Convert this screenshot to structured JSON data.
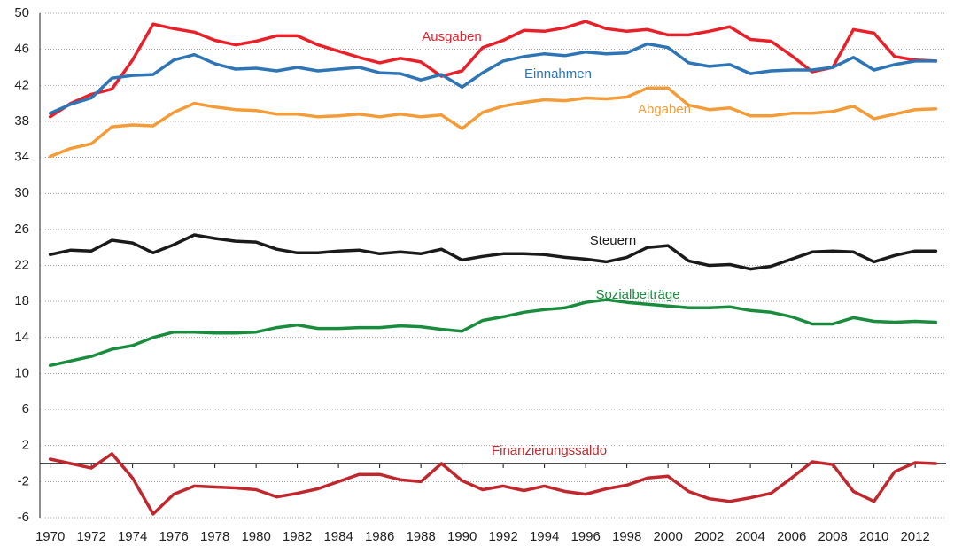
{
  "chart_data": {
    "type": "line",
    "x": [
      1970,
      1971,
      1972,
      1973,
      1974,
      1975,
      1976,
      1977,
      1978,
      1979,
      1980,
      1981,
      1982,
      1983,
      1984,
      1985,
      1986,
      1987,
      1988,
      1989,
      1990,
      1991,
      1992,
      1993,
      1994,
      1995,
      1996,
      1997,
      1998,
      1999,
      2000,
      2001,
      2002,
      2003,
      2004,
      2005,
      2006,
      2007,
      2008,
      2009,
      2010,
      2011,
      2012,
      2013
    ],
    "xlim": [
      1969.5,
      2013.5
    ],
    "xticks": [
      1970,
      1972,
      1974,
      1976,
      1978,
      1980,
      1982,
      1984,
      1986,
      1988,
      1990,
      1992,
      1994,
      1996,
      1998,
      2000,
      2002,
      2004,
      2006,
      2008,
      2010,
      2012
    ],
    "ylim": [
      -6,
      50
    ],
    "yticks": [
      50,
      46,
      42,
      38,
      34,
      30,
      26,
      22,
      18,
      14,
      10,
      6,
      2,
      -2,
      -6
    ],
    "grid": true,
    "series": [
      {
        "name": "Ausgaben",
        "color": "#e8202a",
        "values": [
          38.5,
          40.0,
          41.0,
          41.6,
          44.8,
          48.8,
          48.3,
          47.9,
          47.0,
          46.5,
          46.9,
          47.5,
          47.5,
          46.5,
          45.8,
          45.1,
          44.5,
          45.0,
          44.6,
          43.0,
          43.6,
          46.2,
          47.0,
          48.1,
          48.0,
          48.4,
          49.1,
          48.3,
          48.0,
          48.2,
          47.6,
          47.6,
          48.0,
          48.5,
          47.1,
          46.9,
          45.3,
          43.5,
          44.0,
          48.2,
          47.8,
          45.2,
          44.8,
          44.7
        ]
      },
      {
        "name": "Einnahmen",
        "color": "#2e75b6",
        "values": [
          38.9,
          39.9,
          40.6,
          42.8,
          43.1,
          43.2,
          44.8,
          45.4,
          44.4,
          43.8,
          43.9,
          43.6,
          44.0,
          43.6,
          43.8,
          44.0,
          43.4,
          43.3,
          42.6,
          43.2,
          41.8,
          43.4,
          44.7,
          45.2,
          45.5,
          45.3,
          45.7,
          45.5,
          45.6,
          46.6,
          46.2,
          44.5,
          44.1,
          44.3,
          43.3,
          43.6,
          43.7,
          43.7,
          44.0,
          45.1,
          43.7,
          44.3,
          44.7,
          44.7
        ]
      },
      {
        "name": "Abgaben",
        "color": "#f39c38",
        "values": [
          34.1,
          35.0,
          35.5,
          37.4,
          37.6,
          37.5,
          39.0,
          40.0,
          39.6,
          39.3,
          39.2,
          38.8,
          38.8,
          38.5,
          38.6,
          38.8,
          38.5,
          38.8,
          38.5,
          38.7,
          37.2,
          39.0,
          39.7,
          40.1,
          40.4,
          40.3,
          40.6,
          40.5,
          40.7,
          41.7,
          41.7,
          39.8,
          39.3,
          39.5,
          38.6,
          38.6,
          38.9,
          38.9,
          39.1,
          39.7,
          38.3,
          38.8,
          39.3,
          39.4
        ]
      },
      {
        "name": "Steuern",
        "color": "#1a1a1a",
        "values": [
          23.2,
          23.7,
          23.6,
          24.8,
          24.5,
          23.4,
          24.3,
          25.4,
          25.0,
          24.7,
          24.6,
          23.8,
          23.4,
          23.4,
          23.6,
          23.7,
          23.3,
          23.5,
          23.3,
          23.8,
          22.6,
          23.0,
          23.3,
          23.3,
          23.2,
          22.9,
          22.7,
          22.4,
          22.9,
          24.0,
          24.2,
          22.5,
          22.0,
          22.1,
          21.6,
          21.9,
          22.7,
          23.5,
          23.6,
          23.5,
          22.4,
          23.1,
          23.6,
          23.6
        ]
      },
      {
        "name": "Sozialbeiträge",
        "color": "#1a8c3e",
        "values": [
          10.9,
          11.4,
          11.9,
          12.7,
          13.1,
          14.0,
          14.6,
          14.6,
          14.5,
          14.5,
          14.6,
          15.1,
          15.4,
          15.0,
          15.0,
          15.1,
          15.1,
          15.3,
          15.2,
          14.9,
          14.7,
          15.9,
          16.3,
          16.8,
          17.1,
          17.3,
          17.9,
          18.2,
          17.9,
          17.7,
          17.5,
          17.3,
          17.3,
          17.4,
          17.0,
          16.8,
          16.3,
          15.5,
          15.5,
          16.2,
          15.8,
          15.7,
          15.8,
          15.7
        ]
      },
      {
        "name": "Finanzierungssaldo",
        "color": "#c0282d",
        "values": [
          0.5,
          0.0,
          -0.5,
          1.1,
          -1.6,
          -5.6,
          -3.4,
          -2.5,
          -2.6,
          -2.7,
          -2.9,
          -3.7,
          -3.3,
          -2.8,
          -2.0,
          -1.2,
          -1.2,
          -1.8,
          -2.0,
          0.0,
          -1.9,
          -2.9,
          -2.5,
          -3.0,
          -2.5,
          -3.1,
          -3.4,
          -2.8,
          -2.4,
          -1.6,
          -1.4,
          -3.1,
          -3.9,
          -4.2,
          -3.8,
          -3.3,
          -1.6,
          0.2,
          -0.1,
          -3.1,
          -4.2,
          -0.9,
          0.1,
          0.0
        ]
      }
    ]
  }
}
